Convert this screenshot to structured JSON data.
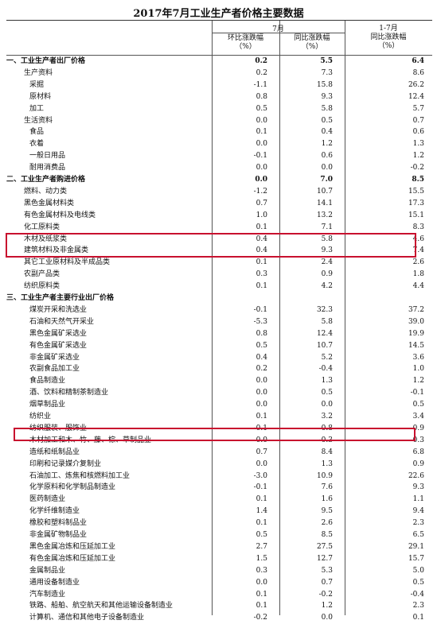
{
  "title": "2017年7月工业生产者价格主要数据",
  "header": {
    "group_july": "7月",
    "col_mom_line1": "环比涨跌幅",
    "col_mom_line2": "（%）",
    "col_yoy_line1": "同比涨跌幅",
    "col_yoy_line2": "（%）",
    "col_ytd_line1": "1-7月",
    "col_ytd_line2": "同比涨跌幅",
    "col_ytd_line3": "（%）"
  },
  "rows": [
    {
      "label": "一、工业生产者出厂价格",
      "mom": "0.2",
      "yoy": "5.5",
      "ytd": "6.4",
      "level": 0,
      "bold": true
    },
    {
      "label": "生产资料",
      "mom": "0.2",
      "yoy": "7.3",
      "ytd": "8.6",
      "level": 1
    },
    {
      "label": "采掘",
      "mom": "-1.1",
      "yoy": "15.8",
      "ytd": "26.2",
      "level": 2
    },
    {
      "label": "原材料",
      "mom": "0.8",
      "yoy": "9.3",
      "ytd": "12.4",
      "level": 2
    },
    {
      "label": "加工",
      "mom": "0.5",
      "yoy": "5.8",
      "ytd": "5.7",
      "level": 2
    },
    {
      "label": "生活资料",
      "mom": "0.0",
      "yoy": "0.5",
      "ytd": "0.7",
      "level": 1
    },
    {
      "label": "食品",
      "mom": "0.1",
      "yoy": "0.4",
      "ytd": "0.6",
      "level": 2
    },
    {
      "label": "衣着",
      "mom": "0.0",
      "yoy": "1.2",
      "ytd": "1.3",
      "level": 2
    },
    {
      "label": "一般日用品",
      "mom": "-0.1",
      "yoy": "0.6",
      "ytd": "1.2",
      "level": 2
    },
    {
      "label": "耐用消费品",
      "mom": "0.0",
      "yoy": "0.0",
      "ytd": "-0.2",
      "level": 2
    },
    {
      "label": "二、工业生产者购进价格",
      "mom": "0.0",
      "yoy": "7.0",
      "ytd": "8.5",
      "level": 0,
      "bold": true
    },
    {
      "label": "燃料、动力类",
      "mom": "-1.2",
      "yoy": "10.7",
      "ytd": "15.5",
      "level": 1
    },
    {
      "label": "黑色金属材料类",
      "mom": "0.7",
      "yoy": "14.1",
      "ytd": "17.3",
      "level": 1
    },
    {
      "label": "有色金属材料及电线类",
      "mom": "1.0",
      "yoy": "13.2",
      "ytd": "15.1",
      "level": 1
    },
    {
      "label": "化工原料类",
      "mom": "0.1",
      "yoy": "7.1",
      "ytd": "8.3",
      "level": 1
    },
    {
      "label": "木材及纸浆类",
      "mom": "0.4",
      "yoy": "5.8",
      "ytd": "4.6",
      "level": 1
    },
    {
      "label": "建筑材料及非金属类",
      "mom": "0.4",
      "yoy": "9.3",
      "ytd": "7.4",
      "level": 1
    },
    {
      "label": "其它工业原材料及半成品类",
      "mom": "0.1",
      "yoy": "2.4",
      "ytd": "2.6",
      "level": 1
    },
    {
      "label": "农副产品类",
      "mom": "0.3",
      "yoy": "0.9",
      "ytd": "1.8",
      "level": 1
    },
    {
      "label": "纺织原料类",
      "mom": "0.1",
      "yoy": "4.2",
      "ytd": "4.4",
      "level": 1
    },
    {
      "label": "三、工业生产者主要行业出厂价格",
      "mom": "",
      "yoy": "",
      "ytd": "",
      "level": 0,
      "bold": true
    },
    {
      "label": "煤炭开采和洗选业",
      "mom": "-0.1",
      "yoy": "32.3",
      "ytd": "37.2",
      "level": 2
    },
    {
      "label": "石油和天然气开采业",
      "mom": "-5.3",
      "yoy": "5.8",
      "ytd": "39.0",
      "level": 2
    },
    {
      "label": "黑色金属矿采选业",
      "mom": "0.8",
      "yoy": "12.4",
      "ytd": "19.9",
      "level": 2
    },
    {
      "label": "有色金属矿采选业",
      "mom": "0.5",
      "yoy": "10.7",
      "ytd": "14.5",
      "level": 2
    },
    {
      "label": "非金属矿采选业",
      "mom": "0.4",
      "yoy": "5.2",
      "ytd": "3.6",
      "level": 2
    },
    {
      "label": "农副食品加工业",
      "mom": "0.2",
      "yoy": "-0.4",
      "ytd": "1.0",
      "level": 2
    },
    {
      "label": "食品制造业",
      "mom": "0.0",
      "yoy": "1.3",
      "ytd": "1.2",
      "level": 2
    },
    {
      "label": "酒、饮料和精制茶制造业",
      "mom": "0.0",
      "yoy": "0.5",
      "ytd": "-0.1",
      "level": 2
    },
    {
      "label": "烟草制品业",
      "mom": "0.0",
      "yoy": "0.0",
      "ytd": "0.5",
      "level": 2
    },
    {
      "label": "纺织业",
      "mom": "0.1",
      "yoy": "3.2",
      "ytd": "3.4",
      "level": 2
    },
    {
      "label": "纺织服装、服饰业",
      "mom": "-0.1",
      "yoy": "0.8",
      "ytd": "0.9",
      "level": 2
    },
    {
      "label": "木材加工和木、竹、藤、棕、草制品业",
      "mom": "0.0",
      "yoy": "-0.3",
      "ytd": "0.3",
      "level": 2
    },
    {
      "label": "造纸和纸制品业",
      "mom": "0.7",
      "yoy": "8.4",
      "ytd": "6.8",
      "level": 2
    },
    {
      "label": "印刷和记录媒介复制业",
      "mom": "0.0",
      "yoy": "1.3",
      "ytd": "0.9",
      "level": 2
    },
    {
      "label": "石油加工、炼焦和核燃料加工业",
      "mom": "-3.0",
      "yoy": "10.9",
      "ytd": "22.6",
      "level": 2
    },
    {
      "label": "化学原料和化学制品制造业",
      "mom": "-0.1",
      "yoy": "7.6",
      "ytd": "9.3",
      "level": 2
    },
    {
      "label": "医药制造业",
      "mom": "0.1",
      "yoy": "1.6",
      "ytd": "1.1",
      "level": 2
    },
    {
      "label": "化学纤维制造业",
      "mom": "1.4",
      "yoy": "9.5",
      "ytd": "9.4",
      "level": 2
    },
    {
      "label": "橡胶和塑料制品业",
      "mom": "0.1",
      "yoy": "2.6",
      "ytd": "2.3",
      "level": 2
    },
    {
      "label": "非金属矿物制品业",
      "mom": "0.5",
      "yoy": "8.5",
      "ytd": "6.5",
      "level": 2
    },
    {
      "label": "黑色金属冶炼和压延加工业",
      "mom": "2.7",
      "yoy": "27.5",
      "ytd": "29.1",
      "level": 2
    },
    {
      "label": "有色金属冶炼和压延加工业",
      "mom": "1.5",
      "yoy": "12.7",
      "ytd": "15.7",
      "level": 2
    },
    {
      "label": "金属制品业",
      "mom": "0.3",
      "yoy": "5.3",
      "ytd": "5.0",
      "level": 2
    },
    {
      "label": "通用设备制造业",
      "mom": "0.0",
      "yoy": "0.7",
      "ytd": "0.5",
      "level": 2
    },
    {
      "label": "汽车制造业",
      "mom": "0.1",
      "yoy": "-0.2",
      "ytd": "-0.4",
      "level": 2
    },
    {
      "label": "铁路、船舶、航空航天和其他运输设备制造业",
      "mom": "0.1",
      "yoy": "1.2",
      "ytd": "2.3",
      "level": 2
    },
    {
      "label": "计算机、通信和其他电子设备制造业",
      "mom": "-0.2",
      "yoy": "0.0",
      "ytd": "0.1",
      "level": 2
    }
  ],
  "colors": {
    "highlight": "#c8102e",
    "rule": "#555555",
    "text": "#111111"
  }
}
